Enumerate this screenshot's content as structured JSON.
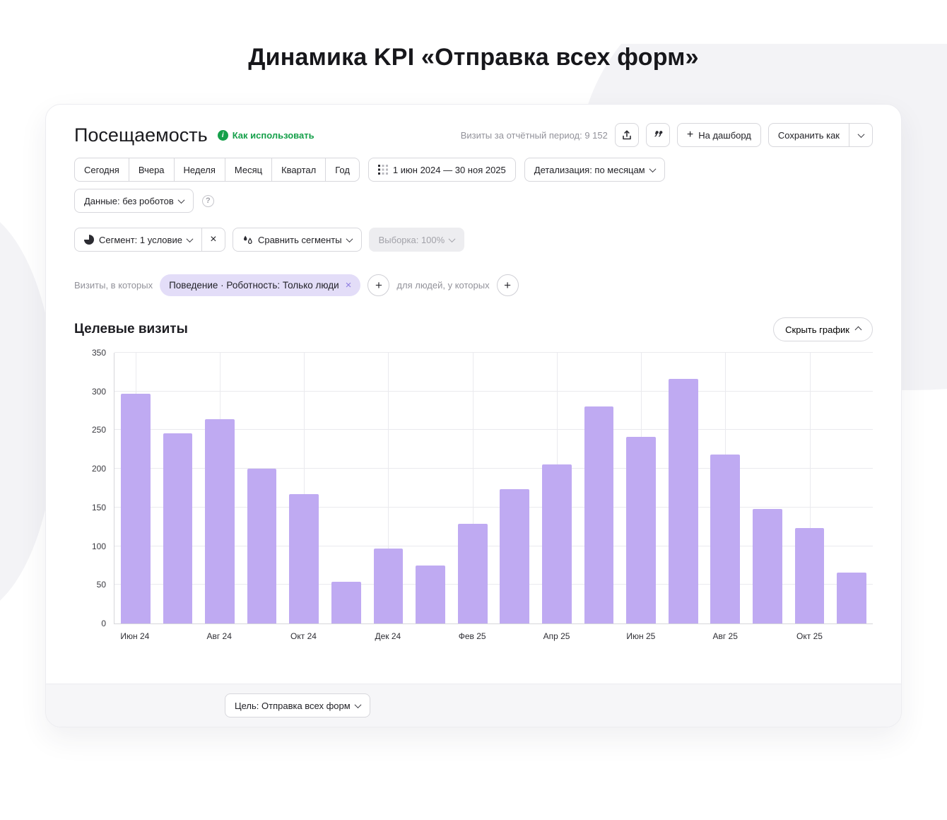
{
  "page_title": "Динамика KPI «Отправка всех форм»",
  "header": {
    "title": "Посещаемость",
    "how_to_use": "Как использовать",
    "visits_period": "Визиты за отчётный период: 9 152",
    "to_dashboard": "На дашборд",
    "save_as": "Сохранить как"
  },
  "toolbar": {
    "period_tabs": [
      "Сегодня",
      "Вчера",
      "Неделя",
      "Месяц",
      "Квартал",
      "Год"
    ],
    "date_range": "1 июн 2024 — 30 ноя 2025",
    "detalization": "Детализация: по месяцам",
    "data_mode": "Данные: без роботов"
  },
  "segments": {
    "segment": "Сегмент: 1 условие",
    "compare": "Сравнить сегменты",
    "sampling": "Выборка: 100%"
  },
  "filters": {
    "visits_in_which": "Визиты, в которых",
    "chip": "Поведение · Роботность: Только люди",
    "for_people": "для людей, у которых"
  },
  "section": {
    "title": "Целевые визиты",
    "hide_chart": "Скрыть график"
  },
  "footer": {
    "goal": "Цель: Отправка всех форм"
  },
  "icons": {
    "close": "×",
    "plus": "+",
    "help": "?",
    "info": "i"
  },
  "colors": {
    "bar": "#bfaaf2",
    "accent_green": "#15a04a",
    "chip_bg": "#e3ddf8"
  },
  "chart_data": {
    "type": "bar",
    "title": "Целевые визиты",
    "categories": [
      "Июн 24",
      "Июл 24",
      "Авг 24",
      "Сен 24",
      "Окт 24",
      "Ноя 24",
      "Дек 24",
      "Янв 25",
      "Фев 25",
      "Мар 25",
      "Апр 25",
      "Май 25",
      "Июн 25",
      "Июл 25",
      "Авг 25",
      "Сен 25",
      "Окт 25",
      "Ноя 25"
    ],
    "values": [
      297,
      246,
      264,
      200,
      167,
      54,
      97,
      75,
      129,
      174,
      206,
      281,
      241,
      316,
      218,
      148,
      123,
      66
    ],
    "x_tick_labels": [
      "Июн 24",
      "Авг 24",
      "Окт 24",
      "Дек 24",
      "Фев 25",
      "Апр 25",
      "Июн 25",
      "Авг 25",
      "Окт 25"
    ],
    "ylim": [
      0,
      350
    ],
    "ytick_step": 50,
    "grid": true,
    "legend": false,
    "bar_color": "#bfaaf2"
  }
}
